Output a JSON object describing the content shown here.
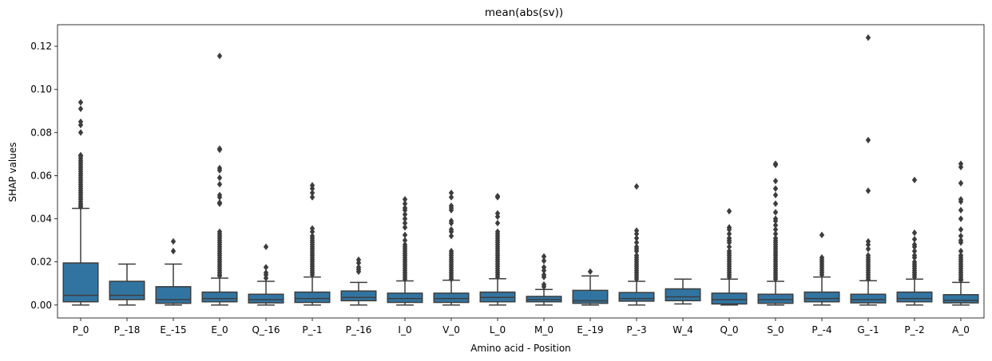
{
  "chart_data": {
    "type": "boxplot",
    "title": "mean(abs(sv))",
    "xlabel": "Amino acid - Position",
    "ylabel": "SHAP values",
    "ylim": [
      -0.006,
      0.13
    ],
    "yticks": [
      0.0,
      0.02,
      0.04,
      0.06,
      0.08,
      0.1,
      0.12
    ],
    "ytick_labels": [
      "0.00",
      "0.02",
      "0.04",
      "0.06",
      "0.08",
      "0.10",
      "0.12"
    ],
    "grid": false,
    "box_color": "#3274a1",
    "line_color": "#3d3d3d",
    "categories": [
      "P_0",
      "P_-18",
      "E_-15",
      "E_0",
      "Q_-16",
      "P_-1",
      "P_-16",
      "I_0",
      "V_0",
      "L_0",
      "M_0",
      "E_-19",
      "P_-3",
      "W_4",
      "Q_0",
      "S_0",
      "P_-4",
      "G_-1",
      "P_-2",
      "A_0"
    ],
    "boxes": [
      {
        "label": "P_0",
        "whislo": 0.0,
        "q1": 0.0015,
        "med": 0.0045,
        "q3": 0.0195,
        "whishi": 0.0448,
        "fliers": [
          0.0455,
          0.0462,
          0.047,
          0.048,
          0.049,
          0.05,
          0.051,
          0.052,
          0.053,
          0.054,
          0.055,
          0.056,
          0.057,
          0.058,
          0.059,
          0.06,
          0.061,
          0.062,
          0.063,
          0.064,
          0.065,
          0.066,
          0.067,
          0.068,
          0.069,
          0.0695,
          0.08,
          0.0835,
          0.085,
          0.091,
          0.094
        ]
      },
      {
        "label": "P_-18",
        "whislo": 0.0,
        "q1": 0.0025,
        "med": 0.0045,
        "q3": 0.011,
        "whishi": 0.019,
        "fliers": []
      },
      {
        "label": "E_-15",
        "whislo": 0.0,
        "q1": 0.0008,
        "med": 0.0025,
        "q3": 0.0085,
        "whishi": 0.019,
        "fliers": [
          0.025,
          0.0295
        ]
      },
      {
        "label": "E_0",
        "whislo": 0.0,
        "q1": 0.0015,
        "med": 0.003,
        "q3": 0.006,
        "whishi": 0.0125,
        "fliers": [
          0.0135,
          0.014,
          0.015,
          0.016,
          0.017,
          0.018,
          0.019,
          0.02,
          0.021,
          0.022,
          0.023,
          0.024,
          0.025,
          0.026,
          0.027,
          0.028,
          0.029,
          0.03,
          0.031,
          0.032,
          0.033,
          0.034,
          0.047,
          0.0475,
          0.05,
          0.051,
          0.056,
          0.059,
          0.0625,
          0.0635,
          0.072,
          0.0725,
          0.1155
        ]
      },
      {
        "label": "Q_-16",
        "whislo": 0.0,
        "q1": 0.001,
        "med": 0.0025,
        "q3": 0.005,
        "whishi": 0.011,
        "fliers": [
          0.0125,
          0.014,
          0.015,
          0.0175,
          0.027
        ]
      },
      {
        "label": "P_-1",
        "whislo": 0.0,
        "q1": 0.0012,
        "med": 0.003,
        "q3": 0.006,
        "whishi": 0.013,
        "fliers": [
          0.014,
          0.015,
          0.016,
          0.017,
          0.018,
          0.019,
          0.02,
          0.021,
          0.022,
          0.023,
          0.024,
          0.025,
          0.026,
          0.027,
          0.028,
          0.029,
          0.03,
          0.031,
          0.032,
          0.034,
          0.0355,
          0.05,
          0.052,
          0.054,
          0.0555
        ]
      },
      {
        "label": "P_-16",
        "whislo": 0.0,
        "q1": 0.002,
        "med": 0.0035,
        "q3": 0.0065,
        "whishi": 0.0105,
        "fliers": [
          0.0155,
          0.0165,
          0.0175,
          0.0195,
          0.021
        ]
      },
      {
        "label": "I_0",
        "whislo": 0.0,
        "q1": 0.0012,
        "med": 0.003,
        "q3": 0.0055,
        "whishi": 0.0112,
        "fliers": [
          0.012,
          0.013,
          0.014,
          0.015,
          0.016,
          0.017,
          0.018,
          0.019,
          0.02,
          0.021,
          0.022,
          0.023,
          0.024,
          0.025,
          0.026,
          0.027,
          0.028,
          0.03,
          0.0325,
          0.036,
          0.038,
          0.04,
          0.042,
          0.044,
          0.045,
          0.047,
          0.049
        ]
      },
      {
        "label": "V_0",
        "whislo": 0.0,
        "q1": 0.0012,
        "med": 0.003,
        "q3": 0.0055,
        "whishi": 0.0115,
        "fliers": [
          0.012,
          0.013,
          0.014,
          0.015,
          0.016,
          0.017,
          0.018,
          0.019,
          0.02,
          0.021,
          0.022,
          0.023,
          0.024,
          0.025,
          0.032,
          0.034,
          0.035,
          0.038,
          0.039,
          0.044,
          0.045,
          0.046,
          0.05,
          0.052
        ]
      },
      {
        "label": "L_0",
        "whislo": 0.0,
        "q1": 0.0015,
        "med": 0.0035,
        "q3": 0.006,
        "whishi": 0.0122,
        "fliers": [
          0.013,
          0.014,
          0.015,
          0.016,
          0.017,
          0.018,
          0.019,
          0.02,
          0.021,
          0.022,
          0.023,
          0.024,
          0.025,
          0.026,
          0.027,
          0.028,
          0.029,
          0.03,
          0.031,
          0.032,
          0.033,
          0.034,
          0.038,
          0.041,
          0.0425,
          0.05,
          0.0505
        ]
      },
      {
        "label": "M_0",
        "whislo": 0.0,
        "q1": 0.0015,
        "med": 0.0025,
        "q3": 0.004,
        "whishi": 0.0072,
        "fliers": [
          0.0085,
          0.0095,
          0.013,
          0.014,
          0.016,
          0.0175,
          0.0205,
          0.0225
        ]
      },
      {
        "label": "E_-19",
        "whislo": 0.0,
        "q1": 0.0008,
        "med": 0.002,
        "q3": 0.0068,
        "whishi": 0.0135,
        "fliers": [
          0.0155
        ]
      },
      {
        "label": "P_-3",
        "whislo": 0.0,
        "q1": 0.0018,
        "med": 0.003,
        "q3": 0.0058,
        "whishi": 0.011,
        "fliers": [
          0.012,
          0.013,
          0.014,
          0.015,
          0.016,
          0.017,
          0.018,
          0.019,
          0.02,
          0.021,
          0.022,
          0.023,
          0.025,
          0.026,
          0.027,
          0.029,
          0.031,
          0.033,
          0.0345,
          0.055
        ]
      },
      {
        "label": "W_4",
        "whislo": 0.0005,
        "q1": 0.002,
        "med": 0.0038,
        "q3": 0.0075,
        "whishi": 0.012,
        "fliers": []
      },
      {
        "label": "Q_0",
        "whislo": 0.0,
        "q1": 0.0005,
        "med": 0.0025,
        "q3": 0.0055,
        "whishi": 0.012,
        "fliers": [
          0.013,
          0.014,
          0.015,
          0.016,
          0.017,
          0.018,
          0.019,
          0.02,
          0.021,
          0.022,
          0.023,
          0.024,
          0.025,
          0.027,
          0.029,
          0.03,
          0.031,
          0.033,
          0.035,
          0.036,
          0.0435
        ]
      },
      {
        "label": "S_0",
        "whislo": 0.0,
        "q1": 0.0008,
        "med": 0.0025,
        "q3": 0.005,
        "whishi": 0.011,
        "fliers": [
          0.012,
          0.013,
          0.014,
          0.015,
          0.016,
          0.017,
          0.018,
          0.019,
          0.02,
          0.021,
          0.022,
          0.023,
          0.024,
          0.025,
          0.026,
          0.027,
          0.028,
          0.029,
          0.03,
          0.031,
          0.033,
          0.035,
          0.037,
          0.039,
          0.04,
          0.043,
          0.047,
          0.051,
          0.054,
          0.0575,
          0.065,
          0.0655
        ]
      },
      {
        "label": "P_-4",
        "whislo": 0.0,
        "q1": 0.0015,
        "med": 0.003,
        "q3": 0.006,
        "whishi": 0.013,
        "fliers": [
          0.014,
          0.015,
          0.016,
          0.017,
          0.018,
          0.019,
          0.02,
          0.021,
          0.022,
          0.0325
        ]
      },
      {
        "label": "G_-1",
        "whislo": 0.0,
        "q1": 0.001,
        "med": 0.0025,
        "q3": 0.005,
        "whishi": 0.0113,
        "fliers": [
          0.012,
          0.013,
          0.014,
          0.015,
          0.016,
          0.017,
          0.018,
          0.019,
          0.02,
          0.021,
          0.022,
          0.023,
          0.026,
          0.028,
          0.0295,
          0.053,
          0.0765,
          0.124
        ]
      },
      {
        "label": "P_-2",
        "whislo": 0.0,
        "q1": 0.0015,
        "med": 0.003,
        "q3": 0.006,
        "whishi": 0.012,
        "fliers": [
          0.013,
          0.014,
          0.015,
          0.016,
          0.017,
          0.018,
          0.019,
          0.02,
          0.022,
          0.023,
          0.025,
          0.027,
          0.028,
          0.0305,
          0.0335,
          0.058
        ]
      },
      {
        "label": "A_0",
        "whislo": 0.0,
        "q1": 0.001,
        "med": 0.0022,
        "q3": 0.0048,
        "whishi": 0.0105,
        "fliers": [
          0.0115,
          0.012,
          0.013,
          0.014,
          0.015,
          0.016,
          0.017,
          0.018,
          0.019,
          0.02,
          0.021,
          0.022,
          0.023,
          0.025,
          0.029,
          0.03,
          0.032,
          0.035,
          0.04,
          0.044,
          0.048,
          0.049,
          0.0565,
          0.064,
          0.0655
        ]
      }
    ]
  }
}
